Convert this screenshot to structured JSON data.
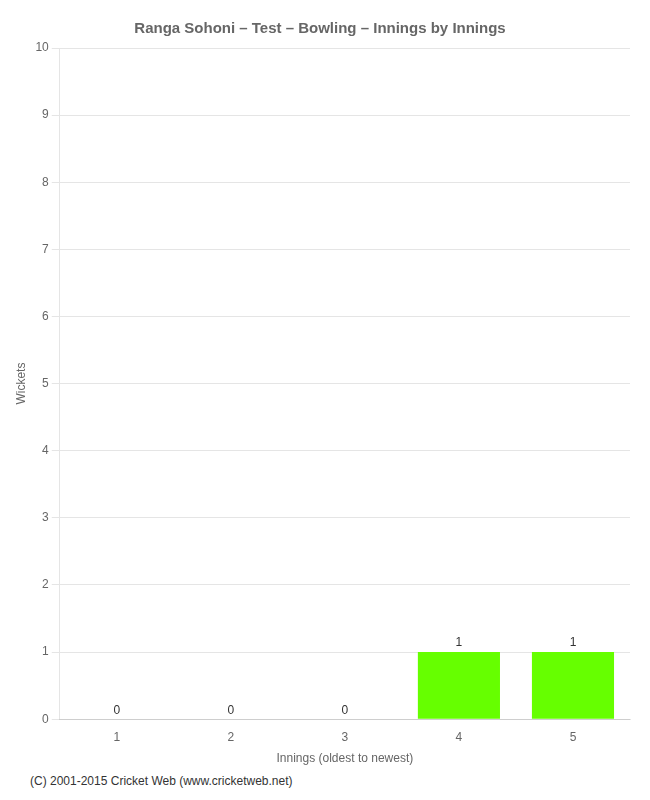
{
  "chart_data": {
    "type": "bar",
    "title": "Ranga Sohoni – Test – Bowling – Innings by Innings",
    "x_label": "Innings (oldest to newest)",
    "y_label": "Wickets",
    "categories": [
      "1",
      "2",
      "3",
      "4",
      "5"
    ],
    "values": [
      0,
      0,
      0,
      1,
      1
    ],
    "color": "#66ff00",
    "ylim": [
      0,
      10
    ],
    "yticks": [
      0,
      1,
      2,
      3,
      4,
      5,
      6,
      7,
      8,
      9,
      10
    ],
    "grid": true,
    "data_labels": true,
    "footer": "(C) 2001-2015 Cricket Web (www.cricketweb.net)"
  }
}
